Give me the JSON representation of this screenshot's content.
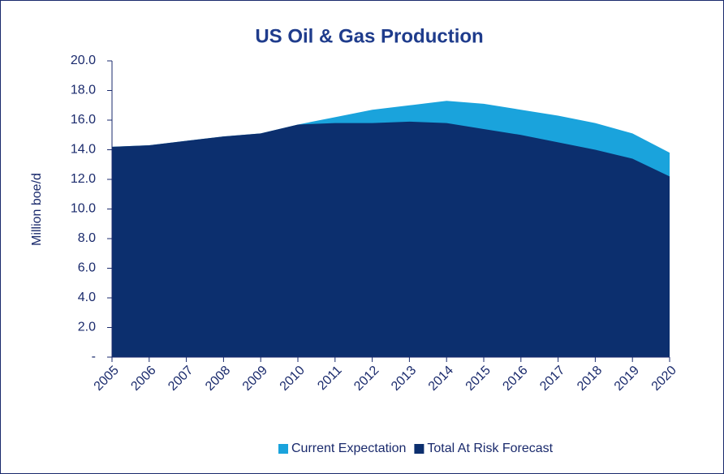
{
  "chart_data": {
    "type": "area",
    "title": "US Oil & Gas Production",
    "y_label": "Million boe/d",
    "categories": [
      "2005",
      "2006",
      "2007",
      "2008",
      "2009",
      "2010",
      "2011",
      "2012",
      "2013",
      "2014",
      "2015",
      "2016",
      "2017",
      "2018",
      "2019",
      "2020"
    ],
    "series": [
      {
        "name": "Current Expectation",
        "color": "#1aa3dc",
        "values": [
          14.2,
          14.3,
          14.6,
          14.9,
          15.1,
          15.7,
          16.2,
          16.7,
          17.0,
          17.3,
          17.1,
          16.7,
          16.3,
          15.8,
          15.1,
          13.8
        ]
      },
      {
        "name": "Total At Risk Forecast",
        "color": "#0c2f6e",
        "values": [
          14.2,
          14.3,
          14.6,
          14.9,
          15.1,
          15.7,
          15.8,
          15.8,
          15.9,
          15.8,
          15.4,
          15.0,
          14.5,
          14.0,
          13.4,
          12.2
        ]
      }
    ],
    "ylim": [
      0,
      20
    ],
    "yticks": [
      {
        "value": 0,
        "label": "-"
      },
      {
        "value": 2,
        "label": "2.0"
      },
      {
        "value": 4,
        "label": "4.0"
      },
      {
        "value": 6,
        "label": "6.0"
      },
      {
        "value": 8,
        "label": "8.0"
      },
      {
        "value": 10,
        "label": "10.0"
      },
      {
        "value": 12,
        "label": "12.0"
      },
      {
        "value": 14,
        "label": "14.0"
      },
      {
        "value": 16,
        "label": "16.0"
      },
      {
        "value": 18,
        "label": "18.0"
      },
      {
        "value": 20,
        "label": "20.0"
      }
    ],
    "legend": "bottom"
  }
}
